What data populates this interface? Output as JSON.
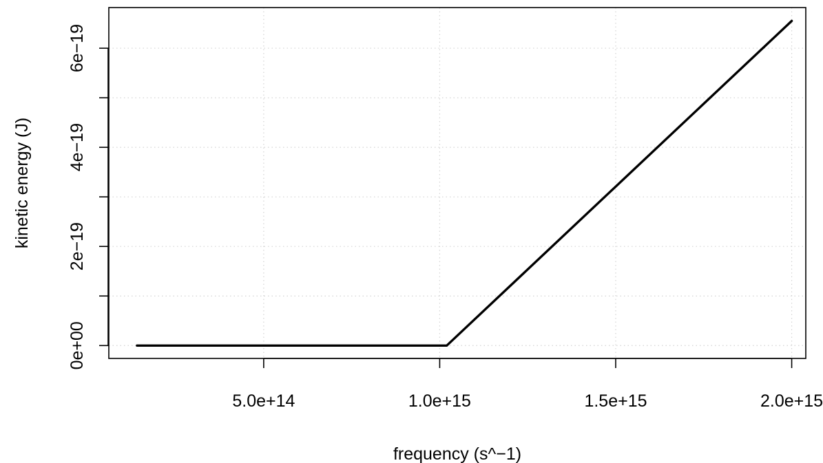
{
  "chart_data": {
    "type": "line",
    "title": "",
    "xlabel": "frequency (s^−1)",
    "ylabel": "kinetic energy (J)",
    "xlim": [
      60000000000000,
      2040000000000000
    ],
    "ylim": [
      -2.6e-20,
      6.82e-19
    ],
    "x_ticks": [
      {
        "value": 500000000000000,
        "label": "5.0e+14"
      },
      {
        "value": 1000000000000000,
        "label": "1.0e+15"
      },
      {
        "value": 1500000000000000,
        "label": "1.5e+15"
      },
      {
        "value": 2000000000000000,
        "label": "2.0e+15"
      }
    ],
    "y_ticks": [
      {
        "value": 0,
        "label": "0e+00"
      },
      {
        "value": 1e-19,
        "label": ""
      },
      {
        "value": 2e-19,
        "label": "2e−19"
      },
      {
        "value": 3e-19,
        "label": ""
      },
      {
        "value": 4e-19,
        "label": "4e−19"
      },
      {
        "value": 5e-19,
        "label": ""
      },
      {
        "value": 6e-19,
        "label": "6e−19"
      }
    ],
    "grid": true,
    "grid_style": "dotted",
    "series": [
      {
        "x": [
          140000000000000,
          1020000000000000,
          2000000000000000
        ],
        "y": [
          0,
          0,
          6.55e-19
        ],
        "color": "#000000"
      }
    ]
  }
}
